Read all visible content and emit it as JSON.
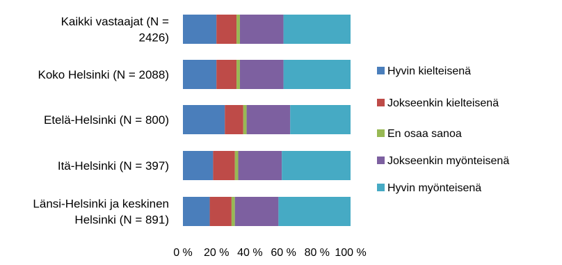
{
  "chart_data": {
    "type": "bar",
    "orientation": "horizontal",
    "stacked": "percent",
    "categories": [
      [
        "Kaikki vastaajat (N =",
        "2426)"
      ],
      [
        "Koko Helsinki (N = 2088)"
      ],
      [
        "Etelä-Helsinki (N = 800)"
      ],
      [
        "Itä-Helsinki (N = 397)"
      ],
      [
        "Länsi-Helsinki ja keskinen",
        "Helsinki (N = 891)"
      ]
    ],
    "series": [
      {
        "name": "Hyvin kielteisenä",
        "color": "#4a7ebb",
        "values": [
          20,
          20,
          25,
          18,
          16
        ]
      },
      {
        "name": "Jokseenkin kielteisenä",
        "color": "#be4b48",
        "values": [
          12,
          12,
          11,
          13,
          13
        ]
      },
      {
        "name": "En osaa sanoa",
        "color": "#98b954",
        "values": [
          2,
          2,
          2,
          2,
          2
        ]
      },
      {
        "name": "Jokseenkin myönteisenä",
        "color": "#7d60a0",
        "values": [
          26,
          26,
          26,
          26,
          26
        ]
      },
      {
        "name": "Hyvin myönteisenä",
        "color": "#46aac4",
        "values": [
          40,
          40,
          36,
          41,
          43
        ]
      }
    ],
    "xlim": [
      0,
      100
    ],
    "ticks": [
      "0 %",
      "20 %",
      "40 %",
      "60 %",
      "80 %",
      "100 %"
    ],
    "grid": false,
    "legend_position": "right"
  }
}
